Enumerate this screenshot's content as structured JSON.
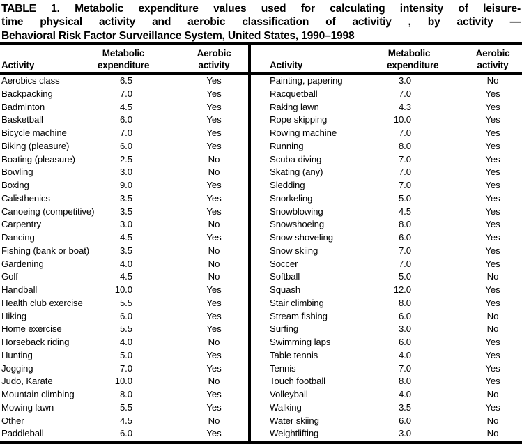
{
  "colors": {
    "text": "#000000",
    "background": "#ffffff",
    "rules": "#000000"
  },
  "title": {
    "line1": "TABLE 1. Metabolic expenditure values used for calculating intensity of leisure-",
    "line2": "time physical activity and aerobic classification of activitiy , by activity —",
    "line3": "Behavioral Risk Factor Surveillance System, United States, 1990–1998"
  },
  "headers": {
    "activity": "Activity",
    "metabolic_line1": "Metabolic",
    "metabolic_line2": "expenditure",
    "aerobic_line1": "Aerobic",
    "aerobic_line2": "activity"
  },
  "left_table": {
    "rows": [
      {
        "activity": "Aerobics class",
        "met": "6.5",
        "aer": "Yes"
      },
      {
        "activity": "Backpacking",
        "met": "7.0",
        "aer": "Yes"
      },
      {
        "activity": "Badminton",
        "met": "4.5",
        "aer": "Yes"
      },
      {
        "activity": "Basketball",
        "met": "6.0",
        "aer": "Yes"
      },
      {
        "activity": "Bicycle machine",
        "met": "7.0",
        "aer": "Yes"
      },
      {
        "activity": "Biking (pleasure)",
        "met": "6.0",
        "aer": "Yes"
      },
      {
        "activity": "Boating (pleasure)",
        "met": "2.5",
        "aer": "No"
      },
      {
        "activity": "Bowling",
        "met": "3.0",
        "aer": "No"
      },
      {
        "activity": "Boxing",
        "met": "9.0",
        "aer": "Yes"
      },
      {
        "activity": "Calisthenics",
        "met": "3.5",
        "aer": "Yes"
      },
      {
        "activity": "Canoeing (competitive)",
        "met": "3.5",
        "aer": "Yes"
      },
      {
        "activity": "Carpentry",
        "met": "3.0",
        "aer": "No"
      },
      {
        "activity": "Dancing",
        "met": "4.5",
        "aer": "Yes"
      },
      {
        "activity": "Fishing (bank or boat)",
        "met": "3.5",
        "aer": "No"
      },
      {
        "activity": "Gardening",
        "met": "4.0",
        "aer": "No"
      },
      {
        "activity": "Golf",
        "met": "4.5",
        "aer": "No"
      },
      {
        "activity": "Handball",
        "met": "10.0",
        "aer": "Yes"
      },
      {
        "activity": "Health club exercise",
        "met": "5.5",
        "aer": "Yes"
      },
      {
        "activity": "Hiking",
        "met": "6.0",
        "aer": "Yes"
      },
      {
        "activity": "Home exercise",
        "met": "5.5",
        "aer": "Yes"
      },
      {
        "activity": "Horseback riding",
        "met": "4.0",
        "aer": "No"
      },
      {
        "activity": "Hunting",
        "met": "5.0",
        "aer": "Yes"
      },
      {
        "activity": "Jogging",
        "met": "7.0",
        "aer": "Yes"
      },
      {
        "activity": "Judo, Karate",
        "met": "10.0",
        "aer": "No"
      },
      {
        "activity": "Mountain climbing",
        "met": "8.0",
        "aer": "Yes"
      },
      {
        "activity": "Mowing lawn",
        "met": "5.5",
        "aer": "Yes"
      },
      {
        "activity": "Other",
        "met": "4.5",
        "aer": "No"
      },
      {
        "activity": "Paddleball",
        "met": "6.0",
        "aer": "Yes"
      }
    ]
  },
  "right_table": {
    "rows": [
      {
        "activity": "Painting, papering",
        "met": "3.0",
        "aer": "No"
      },
      {
        "activity": "Racquetball",
        "met": "7.0",
        "aer": "Yes"
      },
      {
        "activity": "Raking lawn",
        "met": "4.3",
        "aer": "Yes"
      },
      {
        "activity": "Rope skipping",
        "met": "10.0",
        "aer": "Yes"
      },
      {
        "activity": "Rowing machine",
        "met": "7.0",
        "aer": "Yes"
      },
      {
        "activity": "Running",
        "met": "8.0",
        "aer": "Yes"
      },
      {
        "activity": "Scuba diving",
        "met": "7.0",
        "aer": "Yes"
      },
      {
        "activity": "Skating (any)",
        "met": "7.0",
        "aer": "Yes"
      },
      {
        "activity": "Sledding",
        "met": "7.0",
        "aer": "Yes"
      },
      {
        "activity": "Snorkeling",
        "met": "5.0",
        "aer": "Yes"
      },
      {
        "activity": "Snowblowing",
        "met": "4.5",
        "aer": "Yes"
      },
      {
        "activity": "Snowshoeing",
        "met": "8.0",
        "aer": "Yes"
      },
      {
        "activity": "Snow shoveling",
        "met": "6.0",
        "aer": "Yes"
      },
      {
        "activity": "Snow skiing",
        "met": "7.0",
        "aer": "Yes"
      },
      {
        "activity": "Soccer",
        "met": "7.0",
        "aer": "Yes"
      },
      {
        "activity": "Softball",
        "met": "5.0",
        "aer": "No"
      },
      {
        "activity": "Squash",
        "met": "12.0",
        "aer": "Yes"
      },
      {
        "activity": "Stair climbing",
        "met": "8.0",
        "aer": "Yes"
      },
      {
        "activity": "Stream fishing",
        "met": "6.0",
        "aer": "No"
      },
      {
        "activity": "Surfing",
        "met": "3.0",
        "aer": "No"
      },
      {
        "activity": "Swimming laps",
        "met": "6.0",
        "aer": "Yes"
      },
      {
        "activity": "Table tennis",
        "met": "4.0",
        "aer": "Yes"
      },
      {
        "activity": "Tennis",
        "met": "7.0",
        "aer": "Yes"
      },
      {
        "activity": "Touch football",
        "met": "8.0",
        "aer": "Yes"
      },
      {
        "activity": "Volleyball",
        "met": "4.0",
        "aer": "No"
      },
      {
        "activity": "Walking",
        "met": "3.5",
        "aer": "Yes"
      },
      {
        "activity": "Water skiing",
        "met": "6.0",
        "aer": "No"
      },
      {
        "activity": "Weightlifting",
        "met": "3.0",
        "aer": "No"
      }
    ]
  }
}
